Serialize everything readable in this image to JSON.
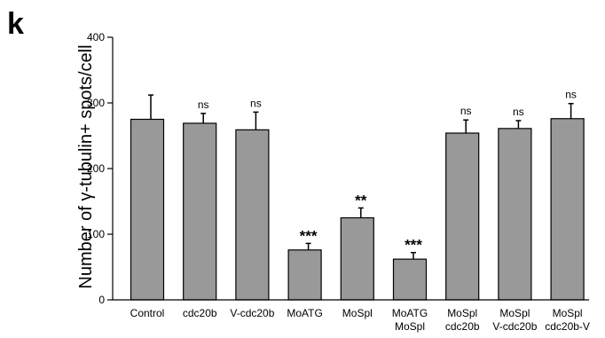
{
  "panel_label": "k",
  "chart_data": {
    "type": "bar",
    "ylabel": "Number of γ-tubulin+ spots/cell",
    "ylim": [
      0,
      400
    ],
    "yticks": [
      0,
      100,
      200,
      300,
      400
    ],
    "categories": [
      [
        "Control"
      ],
      [
        "cdc20b"
      ],
      [
        "V-cdc20b"
      ],
      [
        "MoATG"
      ],
      [
        "MoSpl"
      ],
      [
        "MoATG",
        "MoSpl"
      ],
      [
        "MoSpl",
        "cdc20b"
      ],
      [
        "MoSpl",
        "V-cdc20b"
      ],
      [
        "MoSpl",
        "cdc20b-V"
      ]
    ],
    "values": [
      275,
      269,
      259,
      76,
      125,
      62,
      254,
      261,
      276
    ],
    "errors": [
      37,
      15,
      27,
      10,
      15,
      10,
      20,
      12,
      23
    ],
    "significance": [
      "",
      "ns",
      "ns",
      "***",
      "**",
      "***",
      "ns",
      "ns",
      "ns"
    ],
    "bar_color": "#999999",
    "grid": false
  }
}
